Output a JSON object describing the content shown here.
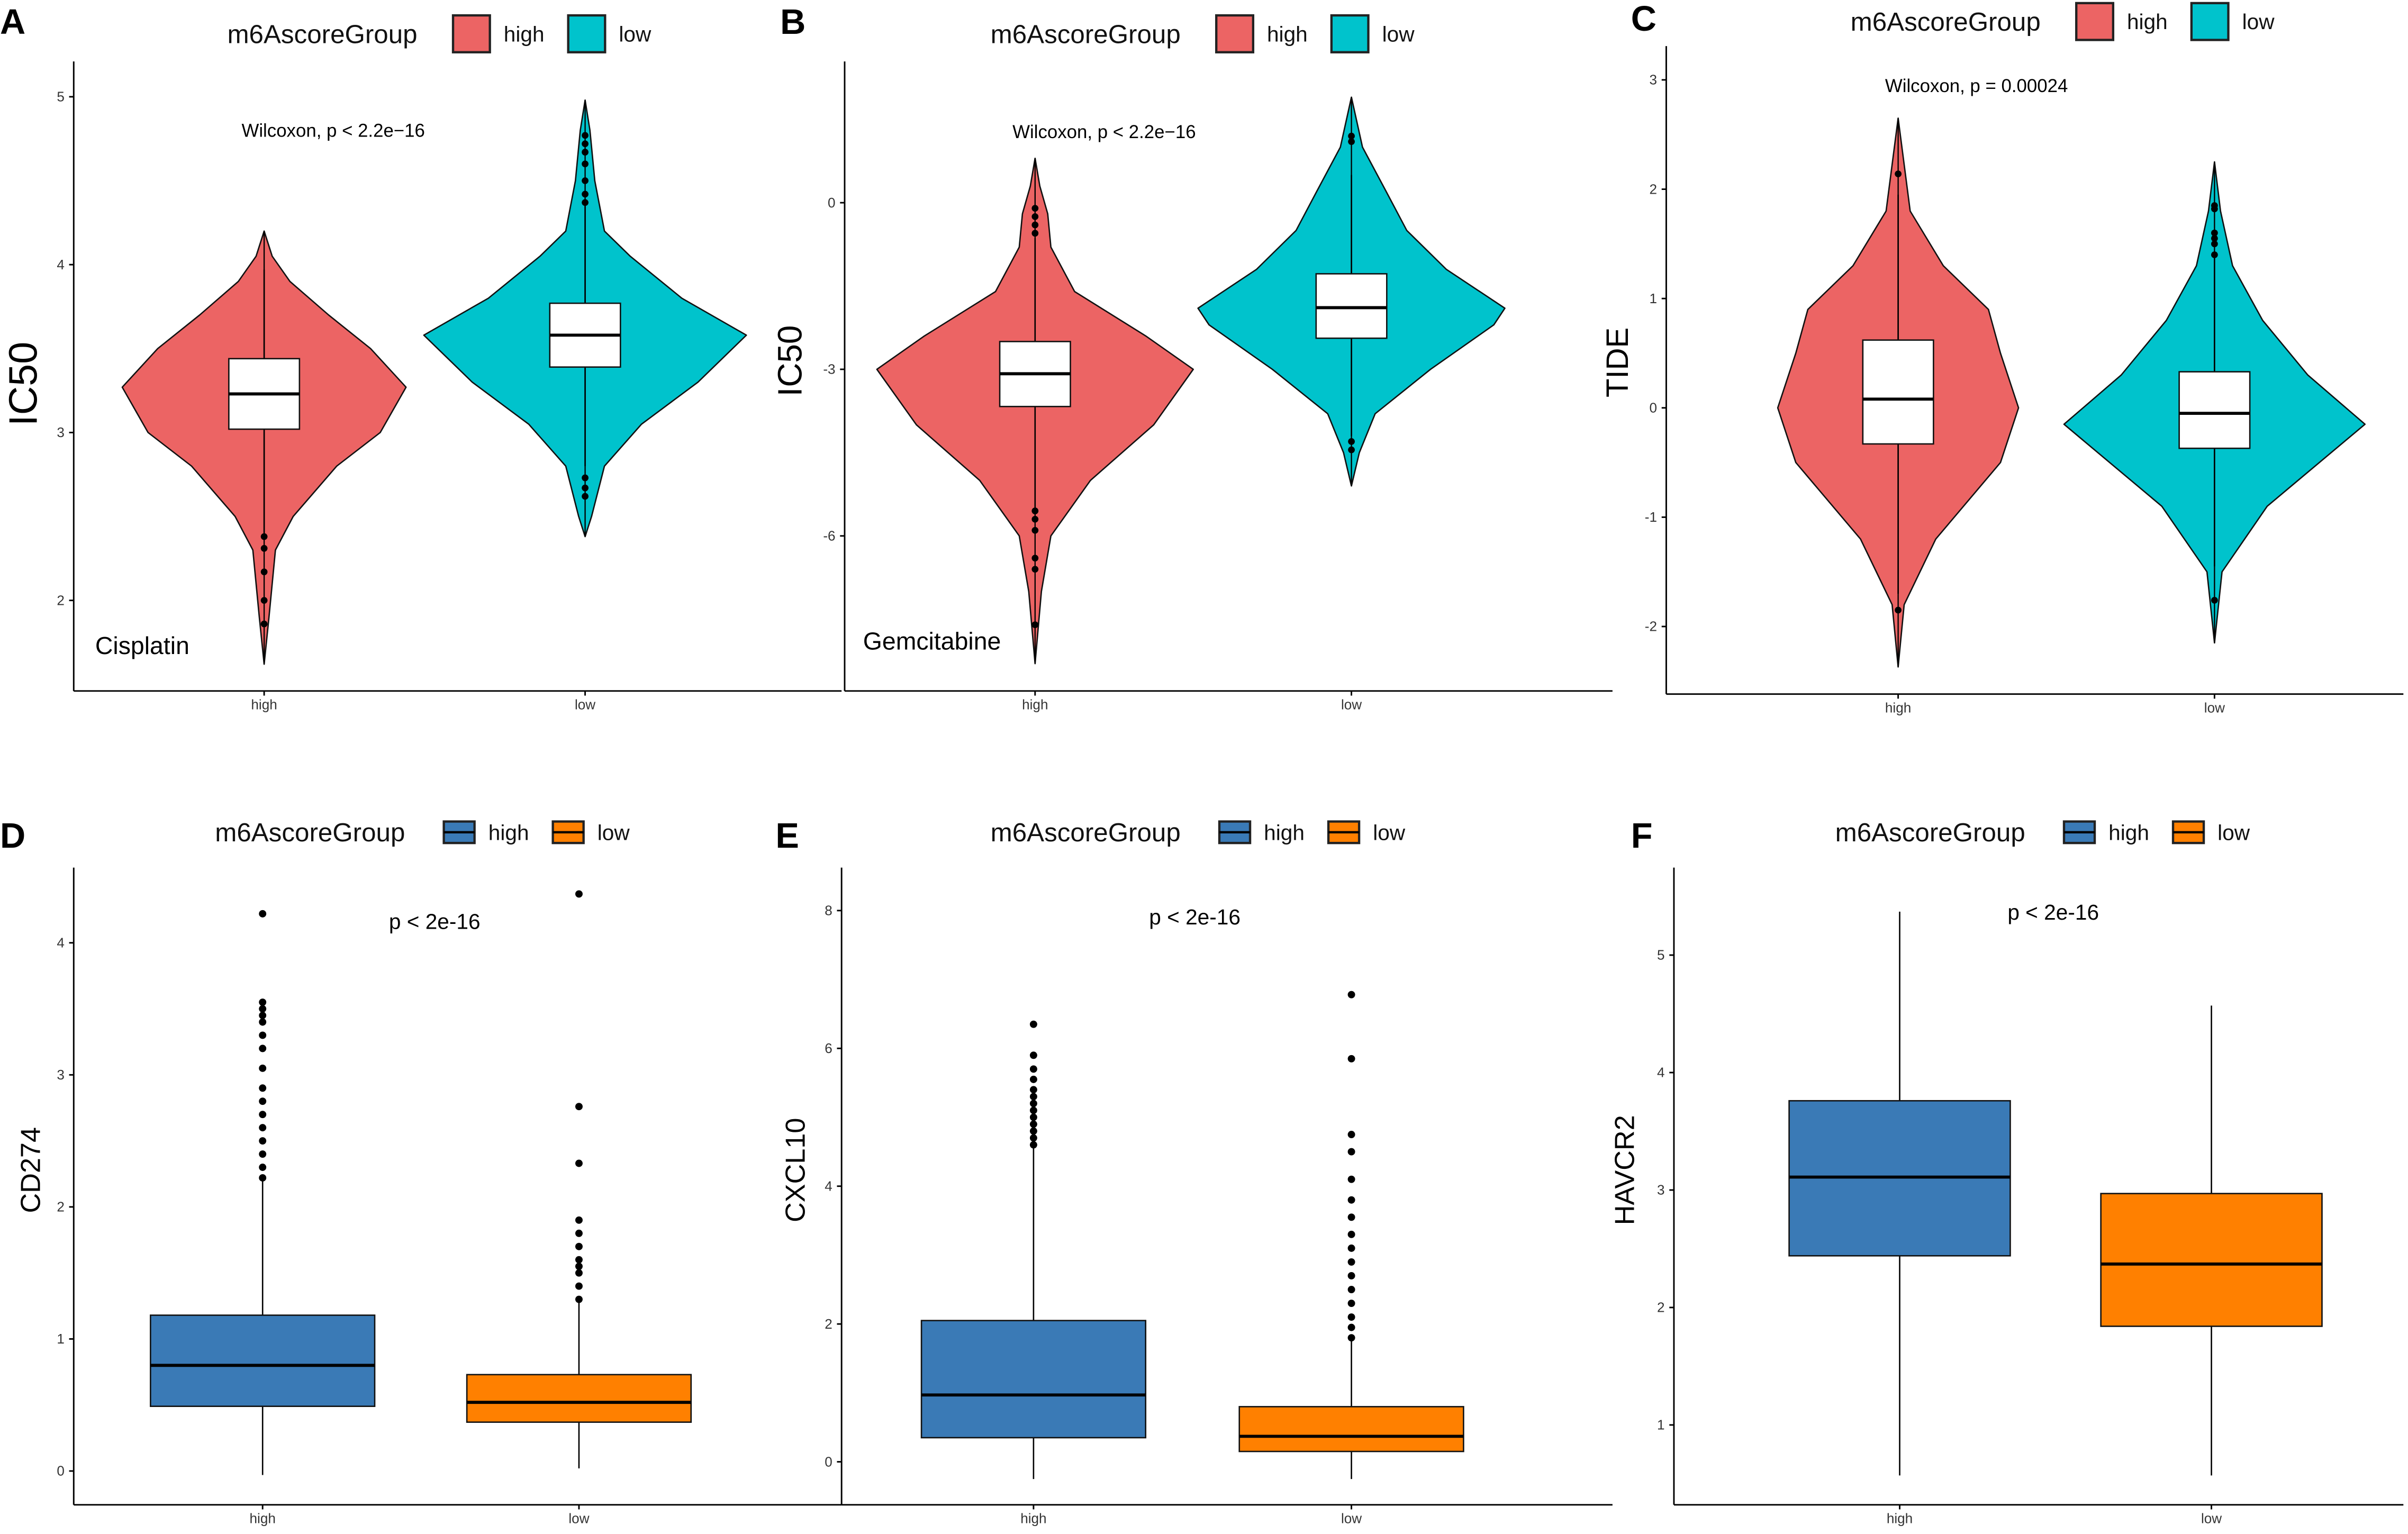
{
  "colors": {
    "violin_high": "#EC6464",
    "violin_low": "#00C3CC",
    "box_high": "#3A7AB6",
    "box_low": "#FF8000"
  },
  "legend": {
    "title": "m6AscoreGroup",
    "high": "high",
    "low": "low"
  },
  "chart_data": [
    {
      "panel": "A",
      "type": "violin",
      "ylabel": "IC50",
      "annotation": "Cisplatin",
      "test": "Wilcoxon, p < 2.2e−16",
      "categories": [
        "high",
        "low"
      ],
      "ylim": [
        1.5,
        5.1
      ],
      "yticks": [
        "2",
        "3",
        "4",
        "5"
      ],
      "groups": [
        {
          "name": "high",
          "q1": 3.02,
          "median": 3.23,
          "q3": 3.44,
          "whisker_low": 2.4,
          "whisker_high": 3.97,
          "outliers": [
            2.38,
            2.31,
            2.17,
            2.0,
            1.86
          ],
          "density": [
            [
              1.62,
              0
            ],
            [
              1.9,
              0.03
            ],
            [
              2.3,
              0.07
            ],
            [
              2.5,
              0.18
            ],
            [
              2.8,
              0.45
            ],
            [
              3.0,
              0.72
            ],
            [
              3.27,
              0.88
            ],
            [
              3.5,
              0.66
            ],
            [
              3.7,
              0.4
            ],
            [
              3.9,
              0.16
            ],
            [
              4.05,
              0.05
            ],
            [
              4.2,
              0
            ]
          ]
        },
        {
          "name": "low",
          "q1": 3.39,
          "median": 3.58,
          "q3": 3.77,
          "whisker_low": 2.8,
          "whisker_high": 4.35,
          "outliers": [
            4.37,
            4.42,
            4.5,
            4.6,
            4.67,
            4.72,
            4.77,
            2.73,
            2.67,
            2.62
          ],
          "density": [
            [
              2.38,
              0
            ],
            [
              2.5,
              0.04
            ],
            [
              2.8,
              0.12
            ],
            [
              3.05,
              0.35
            ],
            [
              3.3,
              0.7
            ],
            [
              3.58,
              1
            ],
            [
              3.8,
              0.6
            ],
            [
              4.05,
              0.28
            ],
            [
              4.2,
              0.12
            ],
            [
              4.5,
              0.06
            ],
            [
              4.8,
              0.03
            ],
            [
              4.98,
              0
            ]
          ]
        }
      ]
    },
    {
      "panel": "B",
      "type": "violin",
      "ylabel": "IC50",
      "annotation": "Gemcitabine",
      "test": "Wilcoxon, p < 2.2e−16",
      "categories": [
        "high",
        "low"
      ],
      "ylim": [
        -8.5,
        2.2
      ],
      "yticks": [
        "-6",
        "-3",
        "0"
      ],
      "groups": [
        {
          "name": "high",
          "q1": -3.67,
          "median": -3.08,
          "q3": -2.5,
          "whisker_low": -5.5,
          "whisker_high": -0.64,
          "outliers": [
            -0.1,
            -0.25,
            -0.4,
            -0.55,
            -5.55,
            -5.7,
            -5.9,
            -6.4,
            -6.6,
            -7.6
          ],
          "density": [
            [
              -8.3,
              0
            ],
            [
              -7,
              0.04
            ],
            [
              -6,
              0.1
            ],
            [
              -5,
              0.35
            ],
            [
              -4,
              0.75
            ],
            [
              -3,
              1
            ],
            [
              -2.4,
              0.7
            ],
            [
              -1.6,
              0.25
            ],
            [
              -0.8,
              0.1
            ],
            [
              -0.2,
              0.08
            ],
            [
              0.3,
              0.03
            ],
            [
              0.8,
              0
            ]
          ]
        },
        {
          "name": "low",
          "q1": -2.44,
          "median": -1.89,
          "q3": -1.28,
          "whisker_low": -4.2,
          "whisker_high": 0.5,
          "outliers": [
            1.1,
            1.2,
            -4.3,
            -4.45
          ],
          "density": [
            [
              -5.1,
              0
            ],
            [
              -4.5,
              0.05
            ],
            [
              -3.8,
              0.15
            ],
            [
              -3,
              0.5
            ],
            [
              -2.2,
              0.9
            ],
            [
              -1.9,
              0.97
            ],
            [
              -1.2,
              0.6
            ],
            [
              -0.5,
              0.35
            ],
            [
              0.2,
              0.22
            ],
            [
              1,
              0.07
            ],
            [
              1.9,
              0
            ]
          ]
        }
      ]
    },
    {
      "panel": "C",
      "type": "violin",
      "ylabel": "TIDE",
      "annotation": "",
      "test": "Wilcoxon, p = 0.00024",
      "categories": [
        "high",
        "low"
      ],
      "ylim": [
        -2.6,
        3.3
      ],
      "yticks": [
        "-2",
        "-1",
        "0",
        "1",
        "2",
        "3"
      ],
      "groups": [
        {
          "name": "high",
          "q1": -0.33,
          "median": 0.08,
          "q3": 0.62,
          "whisker_low": -1.7,
          "whisker_high": 1.95,
          "outliers": [
            2.14,
            -1.85
          ],
          "density": [
            [
              -2.37,
              0
            ],
            [
              -1.8,
              0.04
            ],
            [
              -1.2,
              0.25
            ],
            [
              -0.5,
              0.68
            ],
            [
              0,
              0.8
            ],
            [
              0.5,
              0.68
            ],
            [
              0.9,
              0.6
            ],
            [
              1.3,
              0.3
            ],
            [
              1.8,
              0.08
            ],
            [
              2.65,
              0
            ]
          ]
        },
        {
          "name": "low",
          "q1": -0.37,
          "median": -0.05,
          "q3": 0.33,
          "whisker_low": -1.45,
          "whisker_high": 1.38,
          "outliers": [
            1.4,
            1.5,
            1.55,
            1.6,
            1.82,
            1.85,
            -1.76
          ],
          "density": [
            [
              -2.15,
              0
            ],
            [
              -1.5,
              0.05
            ],
            [
              -0.9,
              0.35
            ],
            [
              -0.15,
              1
            ],
            [
              0.3,
              0.62
            ],
            [
              0.8,
              0.32
            ],
            [
              1.3,
              0.12
            ],
            [
              1.8,
              0.04
            ],
            [
              2.25,
              0
            ]
          ]
        }
      ]
    },
    {
      "panel": "D",
      "type": "box",
      "ylabel": "CD274",
      "test": "p < 2e-16",
      "categories": [
        "high",
        "low"
      ],
      "ylim": [
        -0.25,
        4.6
      ],
      "yticks": [
        "0",
        "1",
        "2",
        "3",
        "4"
      ],
      "groups": [
        {
          "name": "high",
          "q1": 0.49,
          "median": 0.8,
          "q3": 1.18,
          "whisker_low": -0.03,
          "whisker_high": 2.2,
          "outliers": [
            2.22,
            2.3,
            2.4,
            2.5,
            2.6,
            2.7,
            2.8,
            2.9,
            3.05,
            3.2,
            3.3,
            3.4,
            3.45,
            3.5,
            3.55,
            4.22
          ]
        },
        {
          "name": "low",
          "q1": 0.37,
          "median": 0.52,
          "q3": 0.73,
          "whisker_low": 0.02,
          "whisker_high": 1.28,
          "outliers": [
            1.3,
            1.4,
            1.5,
            1.55,
            1.6,
            1.7,
            1.8,
            1.9,
            2.33,
            2.76,
            4.37
          ]
        }
      ]
    },
    {
      "panel": "E",
      "type": "box",
      "ylabel": "CXCL10",
      "test": "p < 2e-16",
      "categories": [
        "high",
        "low"
      ],
      "ylim": [
        -0.6,
        8.6
      ],
      "yticks": [
        "0",
        "2",
        "4",
        "6",
        "8"
      ],
      "groups": [
        {
          "name": "high",
          "q1": 0.35,
          "median": 0.97,
          "q3": 2.05,
          "whisker_low": -0.25,
          "whisker_high": 4.55,
          "outliers": [
            4.6,
            4.7,
            4.8,
            4.9,
            5.0,
            5.1,
            5.2,
            5.3,
            5.4,
            5.55,
            5.7,
            5.9,
            6.35
          ]
        },
        {
          "name": "low",
          "q1": 0.15,
          "median": 0.37,
          "q3": 0.8,
          "whisker_low": -0.25,
          "whisker_high": 1.75,
          "outliers": [
            1.8,
            1.95,
            2.1,
            2.3,
            2.5,
            2.7,
            2.9,
            3.1,
            3.3,
            3.55,
            3.8,
            4.1,
            4.5,
            4.75,
            5.85,
            6.78
          ]
        }
      ]
    },
    {
      "panel": "F",
      "type": "box",
      "ylabel": "HAVCR2",
      "test": "p < 2e-16",
      "categories": [
        "high",
        "low"
      ],
      "ylim": [
        0.3,
        5.6
      ],
      "yticks": [
        "1",
        "2",
        "3",
        "4",
        "5"
      ],
      "groups": [
        {
          "name": "high",
          "q1": 2.44,
          "median": 3.11,
          "q3": 3.76,
          "whisker_low": 0.57,
          "whisker_high": 5.37,
          "outliers": []
        },
        {
          "name": "low",
          "q1": 1.84,
          "median": 2.37,
          "q3": 2.97,
          "whisker_low": 0.57,
          "whisker_high": 4.57,
          "outliers": []
        }
      ]
    }
  ]
}
